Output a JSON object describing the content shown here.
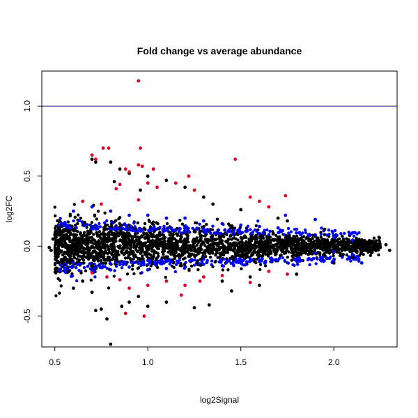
{
  "chart_data": {
    "type": "scatter",
    "title": "Fold change vs average abundance",
    "xlabel": "log2Signal",
    "ylabel": "log2FC",
    "xlim": [
      0.43,
      2.34
    ],
    "ylim": [
      -0.72,
      1.25
    ],
    "x_ticks": [
      {
        "value": 0.5,
        "label": "0.5"
      },
      {
        "value": 1.0,
        "label": "1.0"
      },
      {
        "value": 1.5,
        "label": "1.5"
      },
      {
        "value": 2.0,
        "label": "2.0"
      }
    ],
    "y_ticks": [
      {
        "value": -0.5,
        "label": "-0.5"
      },
      {
        "value": 0.0,
        "label": "0.0"
      },
      {
        "value": 0.5,
        "label": "0.5"
      },
      {
        "value": 1.0,
        "label": "1.0"
      }
    ],
    "reference_lines": [
      {
        "axis": "y",
        "value": 1.0,
        "color": "#000080"
      }
    ],
    "grid": false,
    "legend": "none",
    "colors": {
      "black": "#000000",
      "blue": "#0000ff",
      "red": "#dd0022"
    },
    "series": [
      {
        "color": "#000000",
        "points": [
          [
            0.8,
            -0.7
          ],
          [
            0.78,
            -0.52
          ],
          [
            0.75,
            -0.45
          ],
          [
            0.72,
            -0.46
          ],
          [
            0.86,
            -0.43
          ],
          [
            0.9,
            -0.4
          ],
          [
            1.0,
            -0.43
          ],
          [
            1.1,
            -0.4
          ],
          [
            1.25,
            -0.44
          ],
          [
            1.33,
            -0.42
          ],
          [
            0.6,
            -0.3
          ],
          [
            0.7,
            -0.33
          ],
          [
            0.95,
            -0.36
          ],
          [
            1.45,
            -0.32
          ],
          [
            1.6,
            -0.28
          ],
          [
            1.8,
            -0.2
          ],
          [
            2.0,
            -0.12
          ],
          [
            2.1,
            -0.08
          ],
          [
            2.2,
            -0.03
          ],
          [
            2.25,
            -0.01
          ],
          [
            2.3,
            -0.03
          ],
          [
            2.28,
            0.01
          ],
          [
            2.15,
            0.04
          ],
          [
            1.95,
            0.12
          ],
          [
            1.7,
            0.2
          ],
          [
            1.5,
            0.26
          ],
          [
            1.3,
            0.35
          ],
          [
            1.2,
            0.42
          ],
          [
            1.1,
            0.47
          ],
          [
            1.0,
            0.5
          ],
          [
            0.9,
            0.52
          ],
          [
            0.85,
            0.55
          ],
          [
            0.8,
            0.6
          ],
          [
            0.7,
            0.62
          ],
          [
            0.72,
            0.6
          ],
          [
            0.82,
            0.46
          ],
          [
            0.96,
            0.4
          ],
          [
            0.5,
            0.08
          ],
          [
            0.48,
            -0.03
          ],
          [
            0.49,
            0.05
          ],
          [
            0.47,
            -0.01
          ],
          [
            0.55,
            -0.14
          ],
          [
            0.66,
            0.17
          ],
          [
            1.4,
            -0.25
          ],
          [
            1.75,
            0.18
          ],
          [
            1.9,
            0.07
          ],
          [
            2.05,
            -0.06
          ],
          [
            1.35,
            0.3
          ],
          [
            1.55,
            -0.22
          ],
          [
            0.65,
            -0.25
          ]
        ]
      },
      {
        "color": "#0000ff",
        "points": [
          [
            0.55,
            -0.15
          ],
          [
            0.6,
            -0.12
          ],
          [
            0.7,
            -0.18
          ],
          [
            0.8,
            -0.17
          ],
          [
            0.9,
            -0.15
          ],
          [
            1.0,
            -0.17
          ],
          [
            1.1,
            -0.16
          ],
          [
            1.2,
            -0.15
          ],
          [
            1.3,
            -0.13
          ],
          [
            1.4,
            -0.14
          ],
          [
            1.5,
            -0.12
          ],
          [
            1.6,
            -0.11
          ],
          [
            1.7,
            -0.1
          ],
          [
            1.8,
            -0.09
          ],
          [
            1.9,
            -0.05
          ],
          [
            2.0,
            -0.04
          ],
          [
            2.1,
            -0.06
          ],
          [
            2.15,
            -0.12
          ],
          [
            0.6,
            0.25
          ],
          [
            0.7,
            0.28
          ],
          [
            0.8,
            0.25
          ],
          [
            0.9,
            0.22
          ],
          [
            1.0,
            0.22
          ],
          [
            1.1,
            0.2
          ],
          [
            1.2,
            0.2
          ],
          [
            1.3,
            0.18
          ],
          [
            1.4,
            0.16
          ],
          [
            1.5,
            0.15
          ],
          [
            1.6,
            0.14
          ],
          [
            1.7,
            0.13
          ],
          [
            1.8,
            0.12
          ],
          [
            1.9,
            0.08
          ],
          [
            2.0,
            0.06
          ],
          [
            2.1,
            0.04
          ],
          [
            1.74,
            0.22
          ],
          [
            1.9,
            0.19
          ]
        ]
      },
      {
        "color": "#dd0022",
        "points": [
          [
            0.95,
            1.18
          ],
          [
            0.7,
            0.65
          ],
          [
            0.76,
            0.7
          ],
          [
            0.79,
            0.7
          ],
          [
            0.96,
            0.7
          ],
          [
            1.47,
            0.62
          ],
          [
            0.72,
            0.62
          ],
          [
            0.88,
            0.55
          ],
          [
            0.9,
            0.53
          ],
          [
            0.95,
            0.58
          ],
          [
            0.97,
            0.57
          ],
          [
            1.03,
            0.55
          ],
          [
            1.22,
            0.5
          ],
          [
            0.83,
            0.41
          ],
          [
            0.85,
            0.44
          ],
          [
            1.0,
            0.45
          ],
          [
            1.05,
            0.42
          ],
          [
            1.15,
            0.45
          ],
          [
            1.25,
            0.4
          ],
          [
            1.55,
            0.35
          ],
          [
            1.6,
            0.32
          ],
          [
            1.74,
            0.36
          ],
          [
            1.65,
            0.28
          ],
          [
            0.75,
            0.3
          ],
          [
            0.95,
            0.33
          ],
          [
            0.65,
            0.32
          ],
          [
            0.78,
            -0.22
          ],
          [
            0.9,
            -0.3
          ],
          [
            1.0,
            -0.28
          ],
          [
            1.1,
            -0.25
          ],
          [
            1.2,
            -0.28
          ],
          [
            1.3,
            -0.22
          ],
          [
            1.4,
            -0.21
          ],
          [
            1.55,
            -0.26
          ],
          [
            1.65,
            -0.18
          ],
          [
            1.75,
            -0.2
          ],
          [
            0.88,
            -0.48
          ],
          [
            0.98,
            -0.5
          ],
          [
            1.18,
            -0.35
          ],
          [
            1.28,
            -0.25
          ],
          [
            0.85,
            -0.24
          ],
          [
            0.7,
            -0.19
          ]
        ]
      }
    ]
  }
}
